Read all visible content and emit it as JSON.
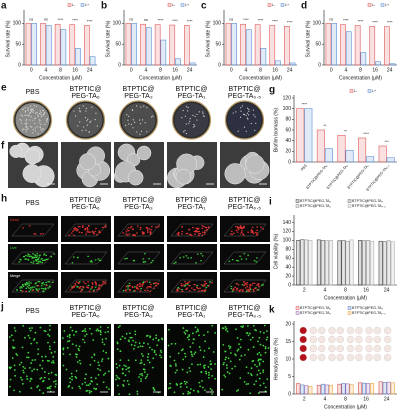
{
  "chart_data": [
    {
      "type": "bar",
      "panel_label": "a",
      "y_label": "Survival rate (%)",
      "x_label": "Concentration (μM)",
      "categories": [
        "0",
        "4",
        "8",
        "16",
        "24"
      ],
      "series": [
        {
          "name": "L-",
          "color": "#e05a5a",
          "values": [
            100,
            100,
            98,
            97,
            95
          ]
        },
        {
          "name": "L+",
          "color": "#5b8fd6",
          "values": [
            100,
            95,
            85,
            40,
            20
          ]
        }
      ],
      "annotations": [
        "ns",
        "ns",
        "****",
        "****",
        "****"
      ],
      "ylim": [
        0,
        125
      ],
      "yticks": [
        0,
        50,
        100
      ]
    },
    {
      "type": "bar",
      "panel_label": "b",
      "y_label": "Survival rate (%)",
      "x_label": "Concentration (μM)",
      "categories": [
        "0",
        "4",
        "8",
        "16",
        "24"
      ],
      "series": [
        {
          "name": "L-",
          "color": "#e05a5a",
          "values": [
            100,
            98,
            97,
            96,
            95
          ]
        },
        {
          "name": "L+",
          "color": "#5b8fd6",
          "values": [
            100,
            90,
            60,
            15,
            5
          ]
        }
      ],
      "annotations": [
        "ns",
        "ns",
        "****",
        "****",
        "****"
      ],
      "ylim": [
        0,
        125
      ],
      "yticks": [
        0,
        50,
        100
      ]
    },
    {
      "type": "bar",
      "panel_label": "c",
      "y_label": "Survival rate (%)",
      "x_label": "Concentration (μM)",
      "categories": [
        "0",
        "4",
        "8",
        "16",
        "24"
      ],
      "series": [
        {
          "name": "L-",
          "color": "#e05a5a",
          "values": [
            100,
            98,
            97,
            95,
            93
          ]
        },
        {
          "name": "L+",
          "color": "#5b8fd6",
          "values": [
            100,
            85,
            40,
            10,
            5
          ]
        }
      ],
      "annotations": [
        "ns",
        "****",
        "****",
        "****",
        "****"
      ],
      "ylim": [
        0,
        125
      ],
      "yticks": [
        0,
        50,
        100
      ]
    },
    {
      "type": "bar",
      "panel_label": "d",
      "y_label": "Survival rate (%)",
      "x_label": "Concentration (μM)",
      "categories": [
        "0",
        "4",
        "8",
        "16",
        "24"
      ],
      "series": [
        {
          "name": "L-",
          "color": "#e05a5a",
          "values": [
            100,
            97,
            95,
            93,
            92
          ]
        },
        {
          "name": "L+",
          "color": "#5b8fd6",
          "values": [
            100,
            80,
            30,
            8,
            3
          ]
        }
      ],
      "annotations": [
        "ns",
        "****",
        "****",
        "****",
        "****"
      ],
      "ylim": [
        0,
        125
      ],
      "yticks": [
        0,
        50,
        100
      ]
    },
    {
      "type": "bar",
      "panel_label": "g",
      "y_label": "Biofilm biomass (%)",
      "categories": [
        "PBS",
        "BTPTIC@PEG-TA₆",
        "BTPTIC@PEG-TA₃",
        "BTPTIC@PEG-TA₁",
        "BTPTIC@PEG-TA₀.₅"
      ],
      "series": [
        {
          "name": "L-",
          "color": "#e05a5a",
          "values": [
            100,
            60,
            50,
            45,
            30
          ]
        },
        {
          "name": "L+",
          "color": "#5b8fd6",
          "values": [
            100,
            25,
            22,
            10,
            8
          ]
        }
      ],
      "annotations": [
        "****",
        "**",
        "**",
        "****",
        "***"
      ],
      "ylim": [
        0,
        120
      ],
      "yticks": [
        0,
        20,
        40,
        60,
        80,
        100,
        120
      ]
    },
    {
      "type": "bar",
      "panel_label": "i",
      "y_label": "Cell viability (%)",
      "x_label": "Concentration (μM)",
      "categories": [
        "2",
        "4",
        "8",
        "16",
        "24"
      ],
      "series": [
        {
          "name": "BTPTIC@PEG-TA₆",
          "color": "#444444",
          "values": [
            100,
            101,
            99,
            100,
            98
          ]
        },
        {
          "name": "BTPTIC@PEG-TA₃",
          "color": "#6f6f6f",
          "values": [
            102,
            100,
            100,
            99,
            97
          ]
        },
        {
          "name": "BTPTIC@PEG-TA₁",
          "color": "#909090",
          "values": [
            101,
            99,
            98,
            100,
            99
          ]
        },
        {
          "name": "BTPTIC@PEG-TA₀.₅",
          "color": "#b0b0b0",
          "values": [
            100,
            100,
            101,
            98,
            97
          ]
        }
      ],
      "ylim": [
        0,
        150
      ],
      "yticks": [
        0,
        20,
        40,
        60,
        80,
        100,
        120,
        140
      ]
    },
    {
      "type": "bar",
      "panel_label": "k",
      "y_label": "Hemolysis rate (%)",
      "x_label": "Concentration (μM)",
      "categories": [
        "2",
        "4",
        "8",
        "16",
        "24"
      ],
      "series": [
        {
          "name": "BTPTIC@PEG-TA₆",
          "color": "#d9534f",
          "values": [
            3,
            2.5,
            2.8,
            3.2,
            3.5
          ]
        },
        {
          "name": "BTPTIC@PEG-TA₃",
          "color": "#5b7fc7",
          "values": [
            2.6,
            2.8,
            3,
            3.1,
            3.3
          ]
        },
        {
          "name": "BTPTIC@PEG-TA₁",
          "color": "#9b6fb3",
          "values": [
            2.4,
            2.6,
            2.9,
            3,
            3.4
          ]
        },
        {
          "name": "BTPTIC@PEG-TA₀.₅",
          "color": "#e8a33d",
          "values": [
            2.2,
            2.5,
            2.7,
            3,
            3.2
          ]
        }
      ],
      "ylim": [
        0,
        20
      ],
      "yticks": [
        0,
        5,
        10,
        15,
        20
      ]
    }
  ],
  "panels": {
    "e": {
      "letter": "e",
      "columns": [
        [
          "PBS"
        ],
        [
          "BTPTIC@",
          "PEG-TA₆"
        ],
        [
          "BTPTIC@",
          "PEG-TA₃"
        ],
        [
          "BTPTIC@",
          "PEG-TA₁"
        ],
        [
          "BTPTIC@",
          "PEG-TA₀.₅"
        ]
      ]
    },
    "f": {
      "letter": "f"
    },
    "h": {
      "letter": "h",
      "columns": [
        [
          "PBS"
        ],
        [
          "BTPTIC@",
          "PEG-TA₆"
        ],
        [
          "BTPTIC@",
          "PEG-TA₃"
        ],
        [
          "BTPTIC@",
          "PEG-TA₁"
        ],
        [
          "BTPTIC@",
          "PEG-TA₀.₅"
        ]
      ],
      "rows": [
        "Dead",
        "Live",
        "Merge"
      ]
    },
    "j": {
      "letter": "j",
      "columns": [
        [
          "PBS"
        ],
        [
          "BTPTIC@",
          "PEG-TA₆"
        ],
        [
          "BTPTIC@",
          "PEG-TA₃"
        ],
        [
          "BTPTIC@",
          "PEG-TA₁"
        ],
        [
          "BTPTIC@",
          "PEG-TA₀.₅"
        ]
      ]
    }
  }
}
